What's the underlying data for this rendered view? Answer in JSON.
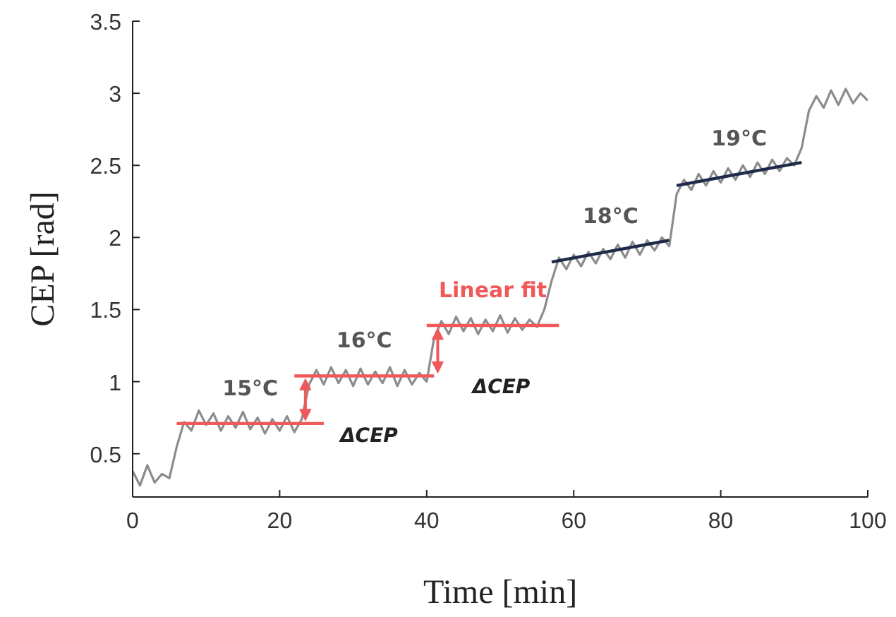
{
  "chart_data": {
    "type": "line",
    "xlabel": "Time [min]",
    "ylabel": "CEP [rad]",
    "xlim": [
      0,
      100
    ],
    "xticks": [
      0,
      20,
      40,
      60,
      80,
      100
    ],
    "ylim": [
      0.2,
      3.5
    ],
    "yticks": [
      0.5,
      1,
      1.5,
      2,
      2.5,
      3,
      3.5
    ],
    "grid": false,
    "x": [
      0,
      1,
      2,
      3,
      4,
      5,
      6,
      7,
      8,
      9,
      10,
      11,
      12,
      13,
      14,
      15,
      16,
      17,
      18,
      19,
      20,
      21,
      22,
      23,
      24,
      25,
      26,
      27,
      28,
      29,
      30,
      31,
      32,
      33,
      34,
      35,
      36,
      37,
      38,
      39,
      40,
      41,
      42,
      43,
      44,
      45,
      46,
      47,
      48,
      49,
      50,
      51,
      52,
      53,
      54,
      55,
      56,
      57,
      58,
      59,
      60,
      61,
      62,
      63,
      64,
      65,
      66,
      67,
      68,
      69,
      70,
      71,
      72,
      73,
      74,
      75,
      76,
      77,
      78,
      79,
      80,
      81,
      82,
      83,
      84,
      85,
      86,
      87,
      88,
      89,
      90,
      91,
      92,
      93,
      94,
      95,
      96,
      97,
      98,
      99,
      100
    ],
    "series": [
      {
        "color": "#8c8c8c",
        "values": [
          0.38,
          0.28,
          0.42,
          0.3,
          0.36,
          0.33,
          0.55,
          0.72,
          0.66,
          0.8,
          0.7,
          0.78,
          0.66,
          0.76,
          0.68,
          0.79,
          0.67,
          0.75,
          0.64,
          0.74,
          0.66,
          0.76,
          0.65,
          0.74,
          0.98,
          1.08,
          0.98,
          1.1,
          0.99,
          1.08,
          0.97,
          1.09,
          0.98,
          1.07,
          0.99,
          1.1,
          0.97,
          1.08,
          0.98,
          1.06,
          1.0,
          1.3,
          1.42,
          1.33,
          1.45,
          1.35,
          1.44,
          1.33,
          1.43,
          1.35,
          1.46,
          1.34,
          1.44,
          1.36,
          1.43,
          1.38,
          1.5,
          1.7,
          1.86,
          1.78,
          1.88,
          1.8,
          1.9,
          1.82,
          1.92,
          1.85,
          1.95,
          1.86,
          1.97,
          1.88,
          1.98,
          1.91,
          2.0,
          1.94,
          2.3,
          2.4,
          2.33,
          2.44,
          2.36,
          2.46,
          2.38,
          2.48,
          2.4,
          2.5,
          2.42,
          2.52,
          2.44,
          2.54,
          2.46,
          2.55,
          2.5,
          2.62,
          2.88,
          2.98,
          2.9,
          3.02,
          2.92,
          3.03,
          2.93,
          3.0,
          2.95
        ]
      },
      {
        "color": "#f0595a",
        "x": [
          6,
          26
        ],
        "values": [
          0.71,
          0.71
        ]
      },
      {
        "color": "#f0595a",
        "x": [
          22,
          41
        ],
        "values": [
          1.04,
          1.04
        ]
      },
      {
        "color": "#f0595a",
        "x": [
          40,
          58
        ],
        "values": [
          1.39,
          1.39
        ]
      },
      {
        "color": "#1f2a4a",
        "x": [
          57,
          73
        ],
        "values": [
          1.83,
          1.98
        ]
      },
      {
        "color": "#1f2a4a",
        "x": [
          74,
          91
        ],
        "values": [
          2.36,
          2.52
        ]
      }
    ],
    "annotations": [
      "15°C",
      "16°C",
      "Linear fit",
      "18°C",
      "19°C",
      "ΔCEP",
      "ΔCEP"
    ]
  }
}
